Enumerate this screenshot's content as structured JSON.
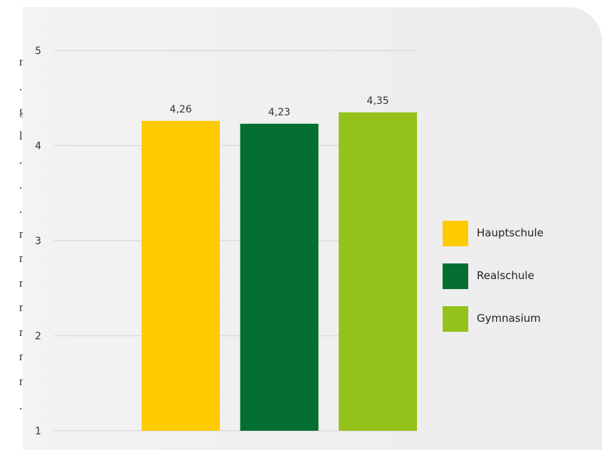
{
  "left_fragment": [
    "n",
    ".",
    "g",
    "l",
    ".",
    ".",
    ".",
    "n",
    "n",
    "n",
    "n",
    "n",
    "n",
    "n",
    "."
  ],
  "colors": {
    "panel": "#efefef",
    "grid": "#dcdcdc",
    "text": "#333333"
  },
  "chart_data": {
    "type": "bar",
    "title": "",
    "xlabel": "",
    "ylabel": "",
    "categories": [
      "Hauptschule",
      "Realschule",
      "Gymnasium"
    ],
    "values": [
      4.26,
      4.23,
      4.35
    ],
    "value_labels": [
      "4,26",
      "4,23",
      "4,35"
    ],
    "colors": [
      "#fecb00",
      "#046f30",
      "#95c11b"
    ],
    "ylim": [
      1,
      5
    ],
    "yticks": [
      "1",
      "2",
      "3",
      "4",
      "5"
    ],
    "grid": true,
    "legend": {
      "position": "right",
      "entries": [
        "Hauptschule",
        "Realschule",
        "Gymnasium"
      ]
    }
  }
}
